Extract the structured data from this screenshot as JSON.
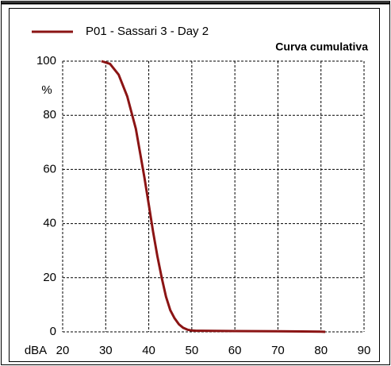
{
  "chart_data": {
    "type": "line",
    "title": "Curva cumulativa",
    "ylabel": "%",
    "xlabel": "dBA",
    "x": [
      29,
      31,
      33,
      35,
      37,
      38,
      39,
      40,
      41,
      42,
      43,
      44,
      45,
      46,
      47,
      48,
      49,
      50,
      51,
      60,
      70,
      80,
      81
    ],
    "series": [
      {
        "name": "P01 - Sassari 3 - Day 2",
        "color": "#8b1414",
        "values": [
          100,
          99,
          95,
          87,
          75,
          66,
          57,
          47,
          37,
          28,
          20,
          13,
          8,
          5,
          2.8,
          1.5,
          0.8,
          0.5,
          0.4,
          0.3,
          0.2,
          0.1,
          0
        ]
      }
    ],
    "xlim": [
      20,
      90
    ],
    "xticks": [
      20,
      30,
      40,
      50,
      60,
      70,
      80,
      90
    ],
    "ylim": [
      0,
      100
    ],
    "yticks": [
      0,
      20,
      40,
      60,
      80,
      100
    ],
    "grid": true
  }
}
